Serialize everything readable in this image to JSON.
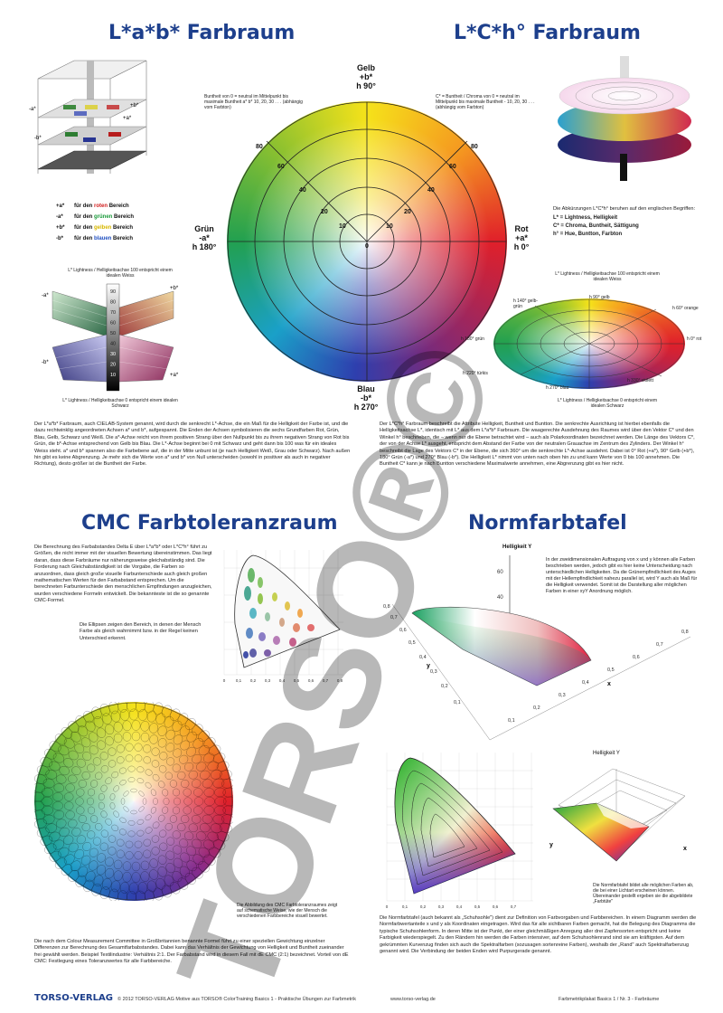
{
  "lab": {
    "title": "L*a*b* Farbraum",
    "cube_labels": {
      "minus_a": "-a*",
      "plus_b": "+b*",
      "minus_b": "-b*",
      "plus_a": "+a*"
    },
    "legend": [
      {
        "key": "+a*",
        "pre": "für den",
        "color_word": "roten",
        "post": "Bereich",
        "color": "#d22020"
      },
      {
        "key": "-a*",
        "pre": "für den",
        "color_word": "grünen",
        "post": "Bereich",
        "color": "#1a9a3a"
      },
      {
        "key": "+b*",
        "pre": "für den",
        "color_word": "gelben",
        "post": "Bereich",
        "color": "#e8c800"
      },
      {
        "key": "-b*",
        "pre": "für den",
        "color_word": "blauen",
        "post": "Bereich",
        "color": "#1f4fc0"
      }
    ],
    "butterfly_top": "L* Lightness / Helligkeitsachse 100 entspricht einem idealen Weiss",
    "butterfly_bottom": "L* Lightness / Helligkeitsachse 0 entspricht einem idealen Schwarz",
    "butterfly_labels": {
      "minus_a": "-a*",
      "plus_b": "+b*",
      "minus_b": "-b*",
      "plus_a": "+a*"
    },
    "axis_values": [
      "90",
      "80",
      "70",
      "60",
      "50",
      "40",
      "30",
      "20",
      "10"
    ],
    "text": "Der L*a*b* Farbraum, auch CIELAB-System genannt, wird durch die senkrecht L*-Achse, die ein Maß für die Helligkeit der Farbe ist, und die dazu rechtwinklig angeordneten Achsen a* und b*, aufgespannt. Die Enden der Achsen symbolisieren die sechs Grundfarben Rot, Grün, Blau, Gelb, Schwarz und Weiß. Die a*-Achse reicht von ihrem positiven Strang über den Nullpunkt bis zu ihrem negativen Strang von Rot bis Grün, die b*-Achse entsprechend von Gelb bis Blau. Die L*-Achse beginnt bei 0 mit Schwarz und geht dann bis 100 was für ein ideales Weiss steht. a* und b* spannen also die Farbebene auf, die in der Mitte unbunt ist (je nach Helligkeit Weiß, Grau oder Schwarz). Nach außen hin gibt es keine Abgrenzung. Je mehr sich die Werte von a* und b* von Null unterscheiden (sowohl in positiver als auch in negativer Richtung), desto größer ist die Buntheit der Farbe."
  },
  "wheel": {
    "top": "Gelb\n+b*\nh 90°",
    "bottom": "Blau\n-b*\nh 270°",
    "left": "Grün\n-a*\nh 180°",
    "right": "Rot\n+a*\nh 0°",
    "note_left": "Buntheit von 0 = neutral im Mittelpunkt bis maximale Buntheit a* b* 10, 20, 30 . . . (abhängig vom Farbton)",
    "note_right": "C* = Buntheit / Chroma von 0 = neutral im Mittelpunkt bis maximale Buntheit - 10, 20, 30 . . . (abhängig vom Farbton)",
    "ring_labels_left": [
      "80",
      "60",
      "40",
      "20",
      "10"
    ],
    "ring_labels_right": [
      "80",
      "60",
      "40",
      "20",
      "10"
    ],
    "center": "0"
  },
  "lch": {
    "title": "L*C*h° Farbraum",
    "intro": "Die Abkürzungen L*C*h° beruhen auf den englischen Begriffen:",
    "items": [
      "L* = Lightness, Helligkeit",
      "C* = Chroma, Buntheit, Sättigung",
      "h° = Hue, Buntton, Farbton"
    ],
    "disc_top": "L* Lightness / Helligkeitsachse 100 entspricht einem idealen Weiss",
    "disc_bottom": "L* Lightness / Helligkeitsachse 0 entspricht einem idealen Schwarz",
    "hue_labels": [
      "h 140° gelb-grün",
      "h 90° gelb",
      "h 60° orange",
      "h 0° rot",
      "h 180° grün",
      "h 220° türkis",
      "h 270° blau",
      "h 330° violett"
    ],
    "text": "Der L*C*h° Farbraum beschreibt die Attribute Helligkeit, Buntheit und Buntton. Die senkrechte Ausrichtung ist hierbei ebenfalls die Helligkeitsachse L*, identisch mit L* aus dem L*a*b* Farbraum. Die waagerechte Ausdehnung des Raumes wird über den Vektor C* und den Winkel h° beschrieben, die – wenn nur die Ebene betrachtet wird – auch als Polarkoordinaten bezeichnet werden. Die Länge des Vektors C*, der von der Achse L* ausgeht, entspricht dem Abstand der Farbe von der neutralen Grauachse im Zentrum des Zylinders. Der Winkel h° beschreibt die Lage des Vektors C* in der Ebene, die sich 360° um die senkrechte L*-Achse ausdehnt. Dabei ist 0° Rot (+a*), 90° Gelb (+b*), 180° Grün (-a*) und 270° Blau (-b*). Die Helligkeit L* nimmt von unten nach oben hin zu und kann Werte von 0 bis 100 annehmen. Die Buntheit C* kann je nach Buntton verschiedene Maximalwerte annehmen, eine Abgrenzung gibt es hier nicht."
  },
  "cmc": {
    "title": "CMC Farbtoleranzraum",
    "text": "Die Berechnung des Farbabstandes Delta E über L*a*b* oder L*C*h° führt zu Größen, die nicht immer mit der visuellen Bewertung übereinstimmen. Das liegt daran, dass diese Farbräume nur näherungsweise gleichabständig sind. Die Forderung nach Gleichabständigkeit ist die Vorgabe, die Farben so anzuordnen, dass gleich große visuelle Farbunterschiede auch gleich großen mathematischen Werten für den Farbabstand entsprechen. Um die berechneten Farbunterschiede den menschlichen Empfindungen anzugleichen, wurden verschiedene Formeln entwickelt. Die bekannteste ist die so genannte CMC-Formel.",
    "ellipse_note": "Die Ellipsen zeigen den Bereich, in denen der Mensch Farbe als gleich wahrnimmt bzw. in der Regel keinen Unterschied erkennt.",
    "disc_caption": "Die Abbildung des CMC Farbtoleranzraumes zeigt auf schematische Weise, wie der Mensch die verschiedenen Farbbereiche visuell bewertet.",
    "bottom_text": "Die nach dem Colour Measurement Committee in Großbritannien benannte Formel führt zu einer speziellen Gewichtung einzelner Differenzen zur Berechnung des Gesamtfarbabstandes. Dabei kann das Verhältnis der Gewichtung von Helligkeit und Buntheit zueinander frei gewählt werden. Beispiel Textilindustrie: Verhältnis 2:1. Der Farbabstand wird in diesem Fall mit dE CMC (2:1) bezeichnet. Vorteil von dE CMC: Festlegung eines Toleranzwertes für alle Farbbereiche.",
    "axis_x": [
      "0",
      "0,1",
      "0,2",
      "0,3",
      "0,4",
      "0,5",
      "0,6",
      "0,7",
      "0,8"
    ]
  },
  "norm": {
    "title": "Normfarbtafel",
    "y_label": "Helligkeit Y",
    "y_ticks": [
      "60",
      "40",
      "20",
      "0"
    ],
    "x_label": "x",
    "y_axis": "y",
    "note": "In der zweidimensionalen Auftragung von x und y können alle Farben beschrieben werden, jedoch gibt es hier keine Unterscheidung nach unterschiedlichen Helligkeiten. Da die Grünempfindlichkeit des Auges mit der Hellempfindlichkeit nahezu parallel ist, wird Y auch als Maß für die Helligkeit verwendet. Somit ist die Darstellung aller möglichen Farben in einer xyY Anordnung möglich.",
    "left_ticks": [
      "0,8",
      "0,7",
      "0,6",
      "0,5",
      "0,4",
      "0,3",
      "0,2",
      "0,1"
    ],
    "right_ticks": [
      "0,8",
      "0,7",
      "0,6",
      "0,5",
      "0,4",
      "0,3",
      "0,2",
      "0,1"
    ],
    "small_title": "Helligkeit Y",
    "caption": "Die Normfarbtafel bildet alle möglichen Farben ab, die bei einer Lichtart erscheinen können. Übereinander gestellt ergeben sie die abgebildete „Farbtüte\"",
    "text": "Die Normfarbtafel (auch bekannt als „Schuhsohle\") dient zur Definition von Farbvorgaben und Farbbereichen. In einem Diagramm werden die Normfarbwertanteile x und y als Koordinaten eingetragen. Wird das für alle sichtbaren Farben gemacht, hat die Belegung des Diagramms die typische Schuhsohlenform. In deren Mitte ist der Punkt, der einer gleichmäßigen Anregung aller drei Zapfensorten entspricht und keine Farbigkeit wiederspiegelt. Zu den Rändern hin werden die Farben intensiver, auf dem Schuhsohlenrand sind sie am kräftigsten. Auf dem gekrümmten Kurvenzug finden sich auch die Spektralfarben (sozusagen sortenreine Farben), weshalb der „Rand\" auch Spektralfarbenzug genannt wird. Die Verbindung der beiden Enden wird Purpurgerade genannt."
  },
  "watermark": {
    "text": "TORSO®©"
  },
  "footer": {
    "logo": "TORSO-VERLAG",
    "copyright": "© 2012 TORSO-VERLAG   Motive aus TORSO® ColorTraining Basics 1 - Praktische Übungen zur Farbmetrik",
    "url": "www.torso-verlag.de",
    "series": "Farbmetrikplakat Basics 1 / Nr. 3 - Farbräume"
  }
}
